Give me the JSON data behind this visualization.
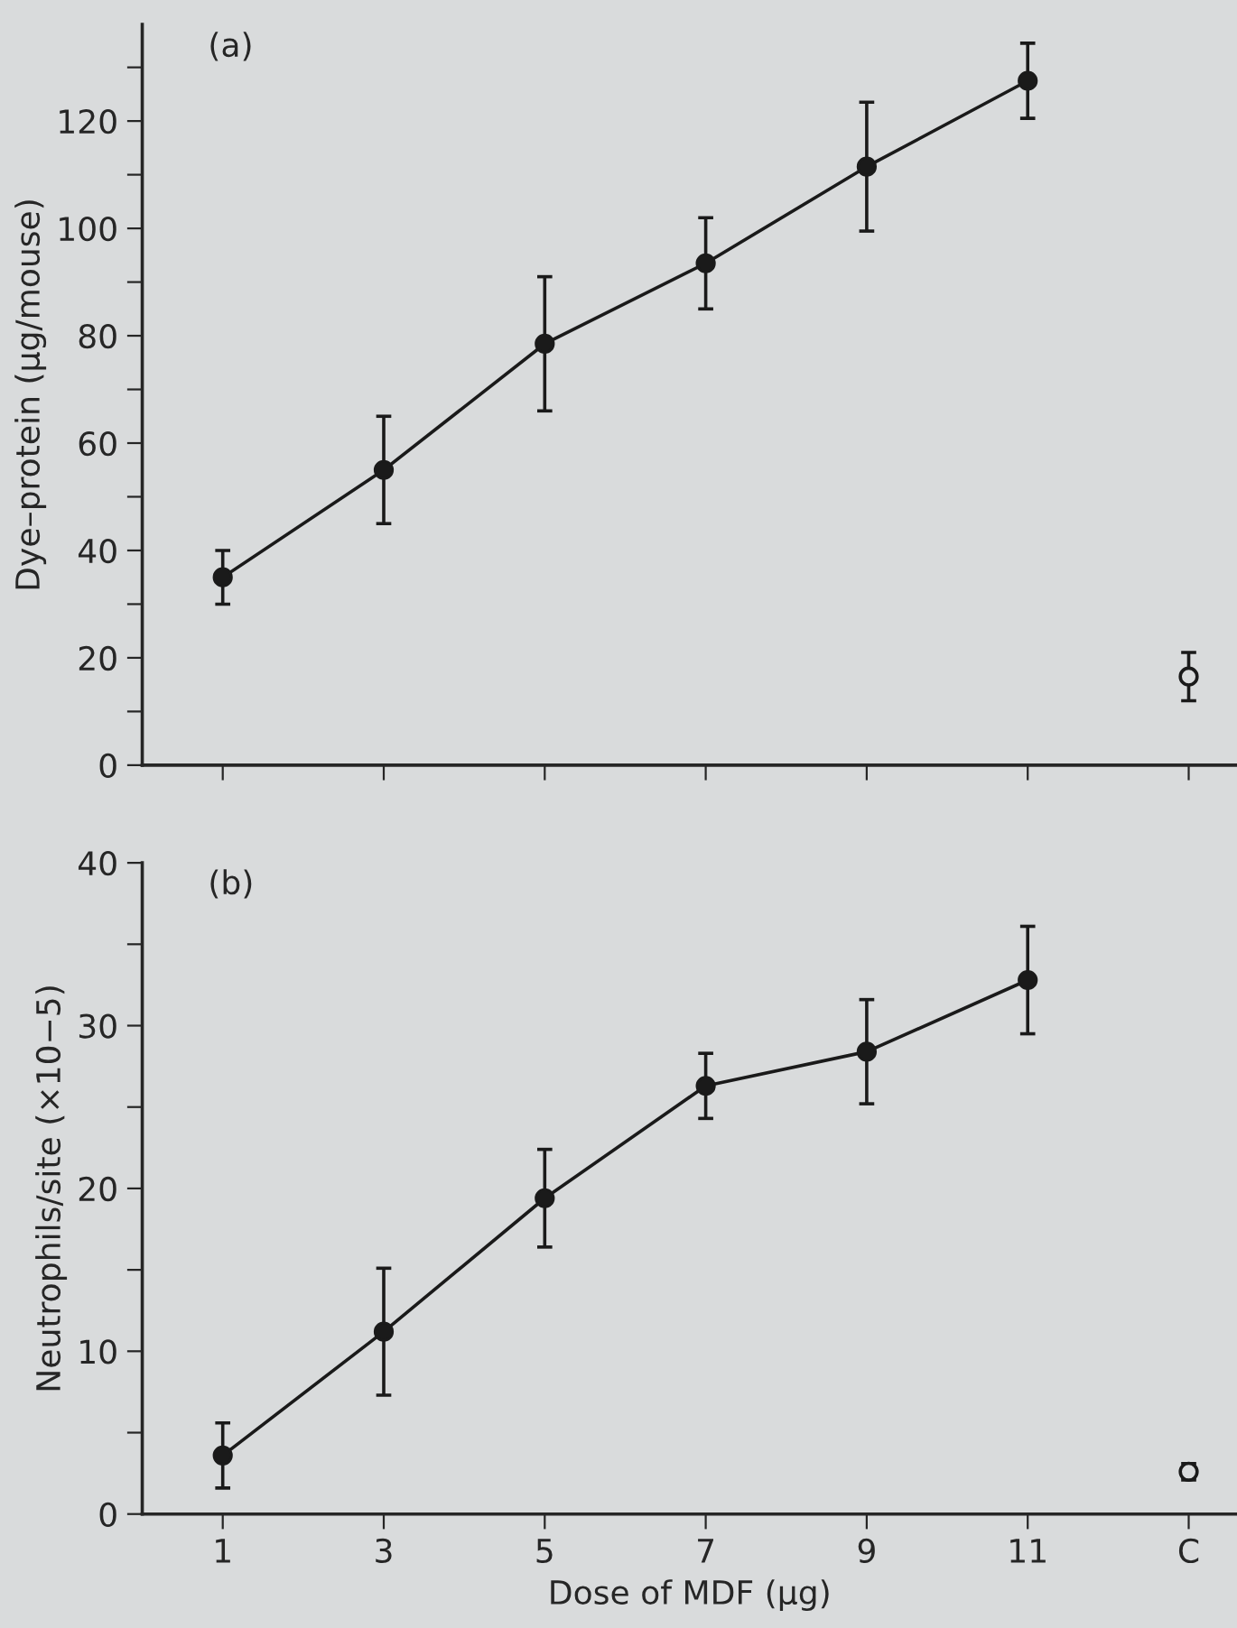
{
  "chart_data": [
    {
      "type": "line",
      "ylabel": "Dye–protein (µg/mouse)",
      "annotations": [
        "(a)"
      ],
      "categories": [
        null,
        null,
        null,
        null,
        null,
        null,
        null
      ],
      "ylim": [
        0,
        138
      ],
      "yticks": [
        0,
        {
          "value": 10,
          "label": null
        },
        20,
        {
          "value": 30,
          "label": null
        },
        40,
        {
          "value": 50,
          "label": null
        },
        60,
        {
          "value": 70,
          "label": null
        },
        80,
        {
          "value": 90,
          "label": null
        },
        100,
        {
          "value": 110,
          "label": null
        },
        120,
        {
          "value": 130,
          "label": null
        }
      ],
      "tick_labels": "y",
      "grid": false,
      "legend": false,
      "marker": "circle",
      "line_style": "solid",
      "series": [
        {
          "color": "#1a1a1a",
          "values": [
            35,
            55,
            78.5,
            93.5,
            111.5,
            127.5,
            null
          ],
          "errors": [
            5,
            10,
            12.5,
            8.5,
            12,
            7,
            null
          ]
        },
        {
          "type": "scatter",
          "color": "#1a1a1a",
          "values": [
            null,
            null,
            null,
            null,
            null,
            null,
            16.5
          ],
          "errors": [
            null,
            null,
            null,
            null,
            null,
            null,
            4.5
          ]
        }
      ]
    },
    {
      "type": "line",
      "ylabel": "Neutrophils/site (×10−5)",
      "xlabel": "Dose of MDF (µg)",
      "annotations": [
        "(b)"
      ],
      "categories": [
        "1",
        "3",
        "5",
        "7",
        "9",
        "11",
        "C"
      ],
      "ylim": [
        0,
        40
      ],
      "yticks": [
        0,
        {
          "value": 5,
          "label": null
        },
        10,
        {
          "value": 15,
          "label": null
        },
        20,
        {
          "value": 25,
          "label": null
        },
        30,
        {
          "value": 35,
          "label": null
        },
        40
      ],
      "grid": false,
      "legend": false,
      "marker": "circle",
      "line_style": "solid",
      "series": [
        {
          "color": "#1a1a1a",
          "values": [
            3.6,
            11.2,
            19.4,
            26.3,
            28.4,
            32.8,
            null
          ],
          "errors": [
            2,
            3.9,
            3,
            2,
            3.2,
            3.3,
            null
          ]
        },
        {
          "type": "scatter",
          "color": "#1a1a1a",
          "values": [
            null,
            null,
            null,
            null,
            null,
            null,
            2.6
          ],
          "errors": [
            null,
            null,
            null,
            null,
            null,
            null,
            0.5
          ]
        }
      ]
    }
  ]
}
